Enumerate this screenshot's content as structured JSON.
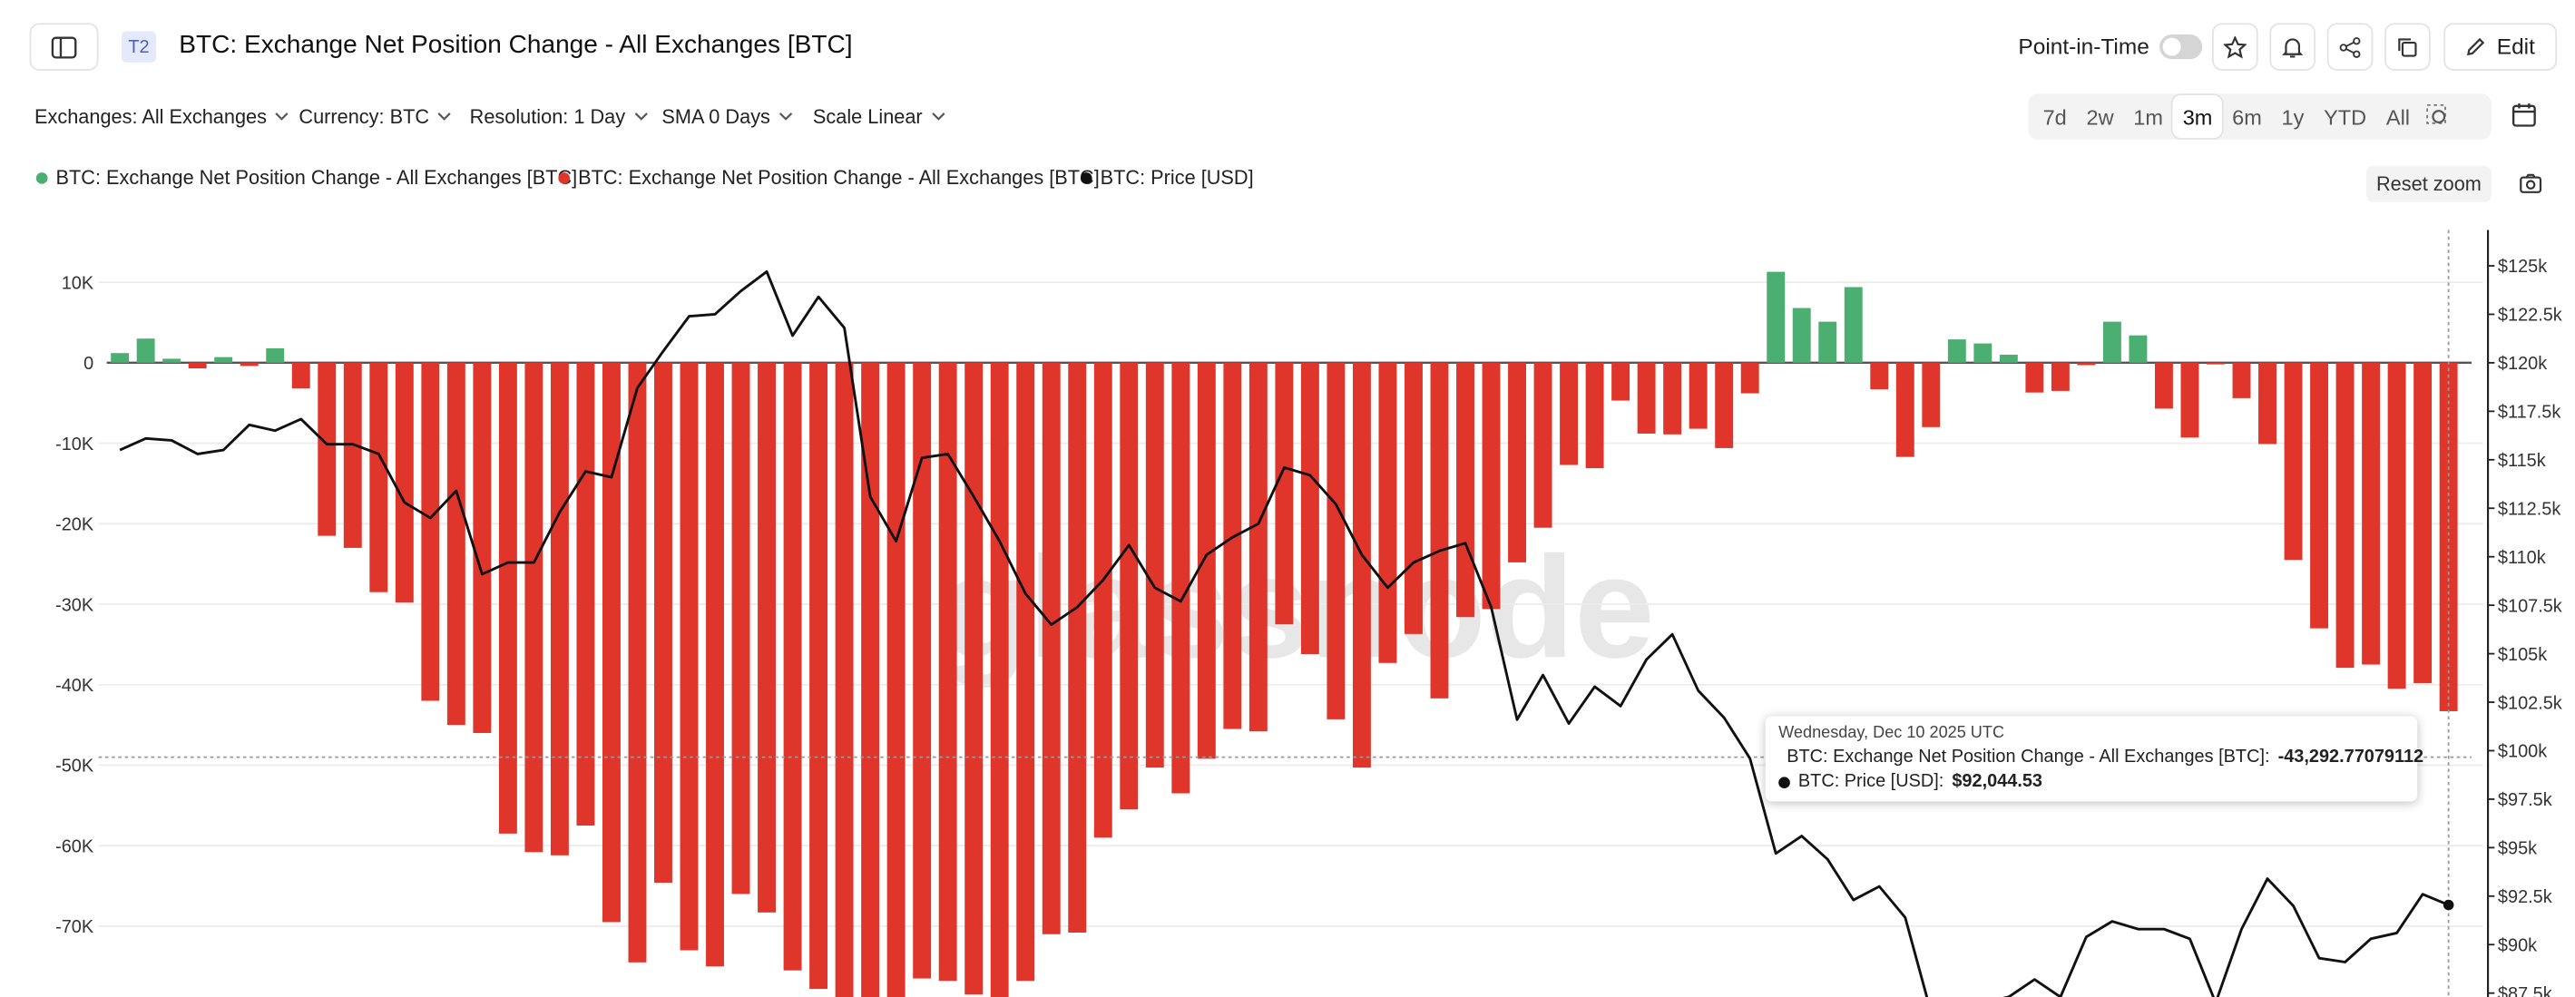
{
  "header": {
    "badge": "T2",
    "title": "BTC: Exchange Net Position Change - All Exchanges [BTC]",
    "point_in_time": "Point-in-Time",
    "edit": "Edit"
  },
  "toolbar": {
    "filters": [
      "Exchanges: All Exchanges",
      "Currency: BTC",
      "Resolution: 1 Day",
      "SMA 0 Days",
      "Scale Linear"
    ],
    "ranges": [
      "7d",
      "2w",
      "1m",
      "3m",
      "6m",
      "1y",
      "YTD",
      "All"
    ],
    "active_range": "3m",
    "reset_zoom": "Reset zoom"
  },
  "chart_data": {
    "type": "bar",
    "watermark": "glassnode",
    "ylim": [
      -78800,
      16500
    ],
    "yticks": [
      {
        "value": 10000,
        "label": "10K"
      },
      0,
      {
        "value": -10000,
        "label": "-10K"
      },
      {
        "value": -20000,
        "label": "-20K"
      },
      {
        "value": -30000,
        "label": "-30K"
      },
      {
        "value": -40000,
        "label": "-40K"
      },
      {
        "value": -50000,
        "label": "-50K"
      },
      {
        "value": -60000,
        "label": "-60K"
      },
      {
        "value": -70000,
        "label": "-70K"
      }
    ],
    "y2lim": [
      87300,
      126850
    ],
    "y2ticks": [
      {
        "value": 125000,
        "label": "$125k"
      },
      {
        "value": 122500,
        "label": "$122.5k"
      },
      {
        "value": 120000,
        "label": "$120k"
      },
      {
        "value": 117500,
        "label": "$117.5k"
      },
      {
        "value": 115000,
        "label": "$115k"
      },
      {
        "value": 112500,
        "label": "$112.5k"
      },
      {
        "value": 110000,
        "label": "$110k"
      },
      {
        "value": 107500,
        "label": "$107.5k"
      },
      {
        "value": 105000,
        "label": "$105k"
      },
      {
        "value": 102500,
        "label": "$102.5k"
      },
      {
        "value": 100000,
        "label": "$100k"
      },
      {
        "value": 97500,
        "label": "$97.5k"
      },
      {
        "value": 95000,
        "label": "$95k"
      },
      {
        "value": 92500,
        "label": "$92.5k"
      },
      {
        "value": 90000,
        "label": "$90k"
      },
      {
        "value": 87500,
        "label": "$87.5k"
      }
    ],
    "grid": true,
    "series": [
      {
        "name": "BTC: Exchange Net Position Change - All Exchanges [BTC]",
        "color": "#4caf72",
        "type": "bar",
        "values": [
          1200,
          3000,
          500,
          null,
          700,
          null,
          1800,
          null,
          null,
          null,
          null,
          null,
          null,
          null,
          null,
          null,
          null,
          null,
          null,
          null,
          null,
          null,
          null,
          null,
          null,
          null,
          null,
          null,
          null,
          null,
          null,
          null,
          null,
          null,
          null,
          null,
          null,
          null,
          null,
          null,
          null,
          null,
          null,
          null,
          null,
          null,
          null,
          null,
          null,
          null,
          null,
          null,
          null,
          null,
          null,
          null,
          null,
          null,
          null,
          null,
          null,
          null,
          null,
          null,
          11300,
          6800,
          5100,
          9400,
          null,
          null,
          null,
          2900,
          2400,
          1000,
          null,
          null,
          null,
          5100,
          3400,
          null,
          null,
          null,
          null,
          null,
          null,
          null,
          null,
          null,
          null,
          null,
          null
        ]
      },
      {
        "name": "BTC: Exchange Net Position Change - All Exchanges [BTC]",
        "color": "#e0352b",
        "type": "bar",
        "values": [
          null,
          null,
          null,
          -700,
          null,
          -400,
          null,
          -3200,
          -21500,
          -23000,
          -28500,
          -29800,
          -42000,
          -45000,
          -46000,
          -58500,
          -60800,
          -61200,
          -57500,
          -69500,
          -74500,
          -64600,
          -73000,
          -75000,
          -66000,
          -68300,
          -75500,
          -77800,
          -80000,
          -80000,
          -80000,
          -76500,
          -76800,
          -78500,
          -79500,
          -76800,
          -71000,
          -70800,
          -59000,
          -55500,
          -50300,
          -53500,
          -49200,
          -45500,
          -45800,
          -32500,
          -36200,
          -44300,
          -50300,
          -37300,
          -33700,
          -41700,
          -31600,
          -30600,
          -24800,
          -20500,
          -12700,
          -13100,
          -4700,
          -8800,
          -8900,
          -8200,
          -10600,
          -3800,
          null,
          null,
          null,
          null,
          -3300,
          -11700,
          -8000,
          null,
          null,
          null,
          -3700,
          -3500,
          -300,
          null,
          null,
          -5700,
          -9300,
          -200,
          -4400,
          -10100,
          -24500,
          -33000,
          -37900,
          -37500,
          -40500,
          -39800,
          -43292.77079112
        ]
      },
      {
        "name": "BTC: Price [USD]",
        "color": "#111111",
        "type": "line",
        "axis": "y2",
        "values": [
          115500,
          116100,
          116000,
          115300,
          115500,
          116800,
          116500,
          117100,
          115800,
          115800,
          115300,
          112800,
          112000,
          113400,
          109100,
          109700,
          109700,
          112300,
          114400,
          114100,
          118700,
          120600,
          122400,
          122500,
          123700,
          124700,
          121400,
          123400,
          121800,
          113100,
          110800,
          115100,
          115300,
          113100,
          110800,
          108100,
          106500,
          107400,
          108800,
          110600,
          108400,
          107700,
          110100,
          111000,
          111700,
          114600,
          114200,
          112700,
          110100,
          108400,
          109700,
          110300,
          110700,
          107400,
          101600,
          103900,
          101400,
          103300,
          102300,
          104700,
          106000,
          103100,
          101700,
          99600,
          94700,
          95600,
          94400,
          92300,
          93000,
          91400,
          86500,
          86200,
          87000,
          87300,
          88200,
          87300,
          90400,
          91200,
          90800,
          90800,
          90300,
          87000,
          90800,
          93400,
          92000,
          89300,
          89100,
          90300,
          90600,
          92600,
          92044.53
        ]
      }
    ],
    "tooltip": {
      "title": "Wednesday, Dec 10 2025 UTC",
      "rows": [
        {
          "name": "BTC: Exchange Net Position Change - All Exchanges [BTC]:",
          "label": "-43,292.77079112"
        },
        {
          "name": "BTC: Price [USD]:",
          "label": "$92,044.53"
        }
      ]
    }
  }
}
